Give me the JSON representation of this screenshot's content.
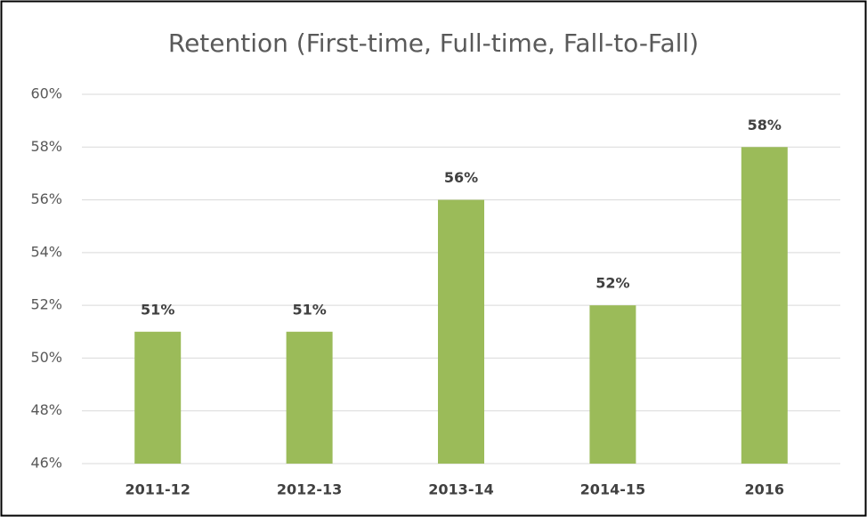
{
  "chart_data": {
    "type": "bar",
    "title": "Retention (First-time, Full-time, Fall-to-Fall)",
    "categories": [
      "2011-12",
      "2012-13",
      "2013-14",
      "2014-15",
      "2016"
    ],
    "values": [
      51,
      51,
      56,
      52,
      58
    ],
    "value_labels": [
      "51%",
      "51%",
      "56%",
      "52%",
      "58%"
    ],
    "color": "#9bbb59",
    "ylim": [
      46,
      60
    ],
    "yticks": [
      {
        "value": 46,
        "label": "46%"
      },
      {
        "value": 48,
        "label": "48%"
      },
      {
        "value": 50,
        "label": "50%"
      },
      {
        "value": 52,
        "label": "52%"
      },
      {
        "value": 54,
        "label": "54%"
      },
      {
        "value": 56,
        "label": "56%"
      },
      {
        "value": 58,
        "label": "58%"
      },
      {
        "value": 60,
        "label": "60%"
      }
    ],
    "grid": true
  }
}
